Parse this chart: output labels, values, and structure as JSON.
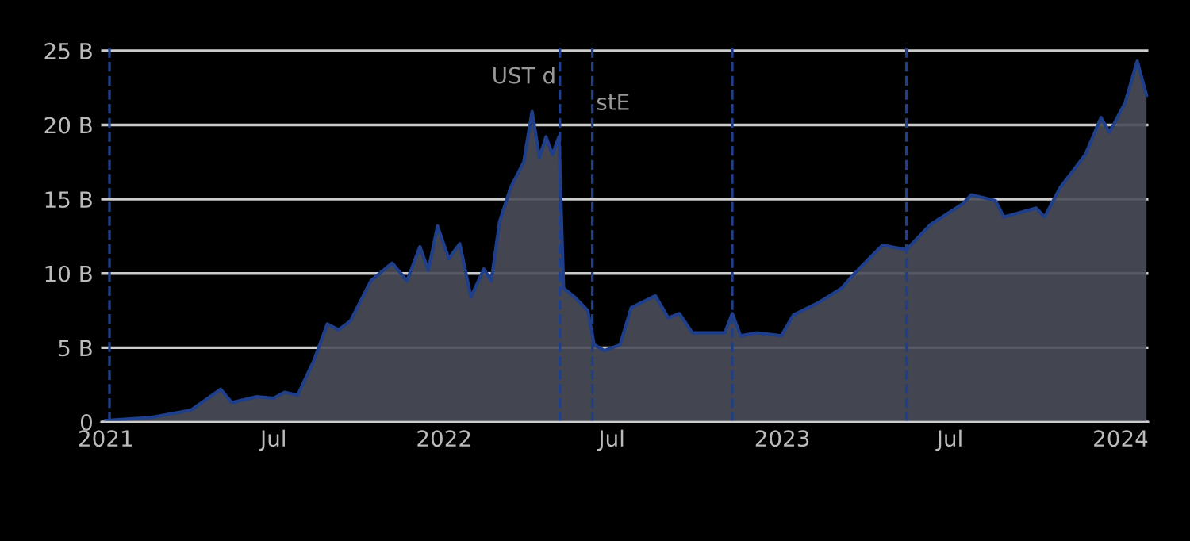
{
  "chart_data": {
    "type": "area",
    "x": [
      "2021-01-01",
      "2021-02-19",
      "2021-04-03",
      "2021-05-05",
      "2021-05-17",
      "2021-06-13",
      "2021-07-01",
      "2021-07-13",
      "2021-07-27",
      "2021-08-14",
      "2021-08-28",
      "2021-09-09",
      "2021-09-22",
      "2021-10-14",
      "2021-11-06",
      "2021-11-22",
      "2021-12-06",
      "2021-12-15",
      "2021-12-25",
      "2022-01-06",
      "2022-01-18",
      "2022-01-30",
      "2022-02-13",
      "2022-02-21",
      "2022-03-02",
      "2022-03-14",
      "2022-03-28",
      "2022-04-06",
      "2022-04-14",
      "2022-04-21",
      "2022-04-28",
      "2022-05-05",
      "2022-05-10",
      "2022-05-22",
      "2022-06-05",
      "2022-06-12",
      "2022-06-23",
      "2022-07-10",
      "2022-07-22",
      "2022-08-17",
      "2022-08-31",
      "2022-09-12",
      "2022-09-26",
      "2022-10-31",
      "2022-11-08",
      "2022-11-17",
      "2022-12-05",
      "2022-12-31",
      "2023-01-13",
      "2023-02-08",
      "2023-03-06",
      "2023-03-20",
      "2023-04-19",
      "2023-05-15",
      "2023-06-10",
      "2023-07-15",
      "2023-07-24",
      "2023-08-19",
      "2023-08-28",
      "2023-10-02",
      "2023-10-11",
      "2023-10-28",
      "2023-11-24",
      "2023-12-11",
      "2023-12-20",
      "2024-01-06",
      "2024-01-19",
      "2024-01-29"
    ],
    "series": [
      {
        "color": "#1f3f8a",
        "values": [
          0.1,
          0.3,
          0.8,
          2.2,
          1.3,
          1.7,
          1.6,
          2.0,
          1.8,
          4.2,
          6.6,
          6.2,
          6.8,
          9.5,
          10.7,
          9.5,
          11.8,
          10.2,
          13.2,
          11.0,
          12.0,
          8.4,
          10.3,
          9.5,
          13.5,
          15.8,
          17.5,
          20.9,
          17.8,
          19.2,
          18.0,
          19.2,
          9.0,
          8.4,
          7.5,
          5.2,
          4.8,
          5.2,
          7.7,
          8.5,
          7.0,
          7.3,
          6.0,
          6.0,
          7.3,
          5.8,
          6.0,
          5.8,
          7.2,
          8.0,
          9.0,
          10.0,
          11.9,
          11.6,
          13.3,
          14.7,
          15.3,
          14.9,
          13.8,
          14.4,
          13.8,
          15.8,
          18.0,
          20.5,
          19.5,
          21.5,
          24.3,
          22.0
        ]
      }
    ],
    "xlim": [
      "2020-12-27",
      "2024-01-31"
    ],
    "xticks": [
      {
        "value": "2021-01-01",
        "label": "2021"
      },
      {
        "value": "2021-07-01",
        "label": "Jul"
      },
      {
        "value": "2022-01-01",
        "label": "2022"
      },
      {
        "value": "2022-07-01",
        "label": "Jul"
      },
      {
        "value": "2023-01-01",
        "label": "2023"
      },
      {
        "value": "2023-07-01",
        "label": "Jul"
      },
      {
        "value": "2024-01-01",
        "label": "2024"
      }
    ],
    "ylim": [
      0,
      25.5
    ],
    "yticks": [
      {
        "value": 0,
        "label": "0"
      },
      {
        "value": 5,
        "label": "5 B"
      },
      {
        "value": 10,
        "label": "10 B"
      },
      {
        "value": 15,
        "label": "15 B"
      },
      {
        "value": 20,
        "label": "20 B"
      },
      {
        "value": 25,
        "label": "25 B"
      }
    ],
    "grid": "y",
    "ref_lines": [
      {
        "axis": "x",
        "value": "2021-01-05",
        "color": "#1f3f8a",
        "line_style": "dashed"
      },
      {
        "axis": "x",
        "value": "2022-05-06",
        "color": "#1f3f8a",
        "line_style": "dashed",
        "label": "UST d"
      },
      {
        "axis": "x",
        "value": "2022-06-10",
        "color": "#1f3f8a",
        "line_style": "dashed",
        "label": "stE"
      },
      {
        "axis": "x",
        "value": "2022-11-08",
        "color": "#1f3f8a",
        "line_style": "dashed"
      },
      {
        "axis": "x",
        "value": "2023-05-15",
        "color": "#1f3f8a",
        "line_style": "dashed"
      }
    ]
  }
}
